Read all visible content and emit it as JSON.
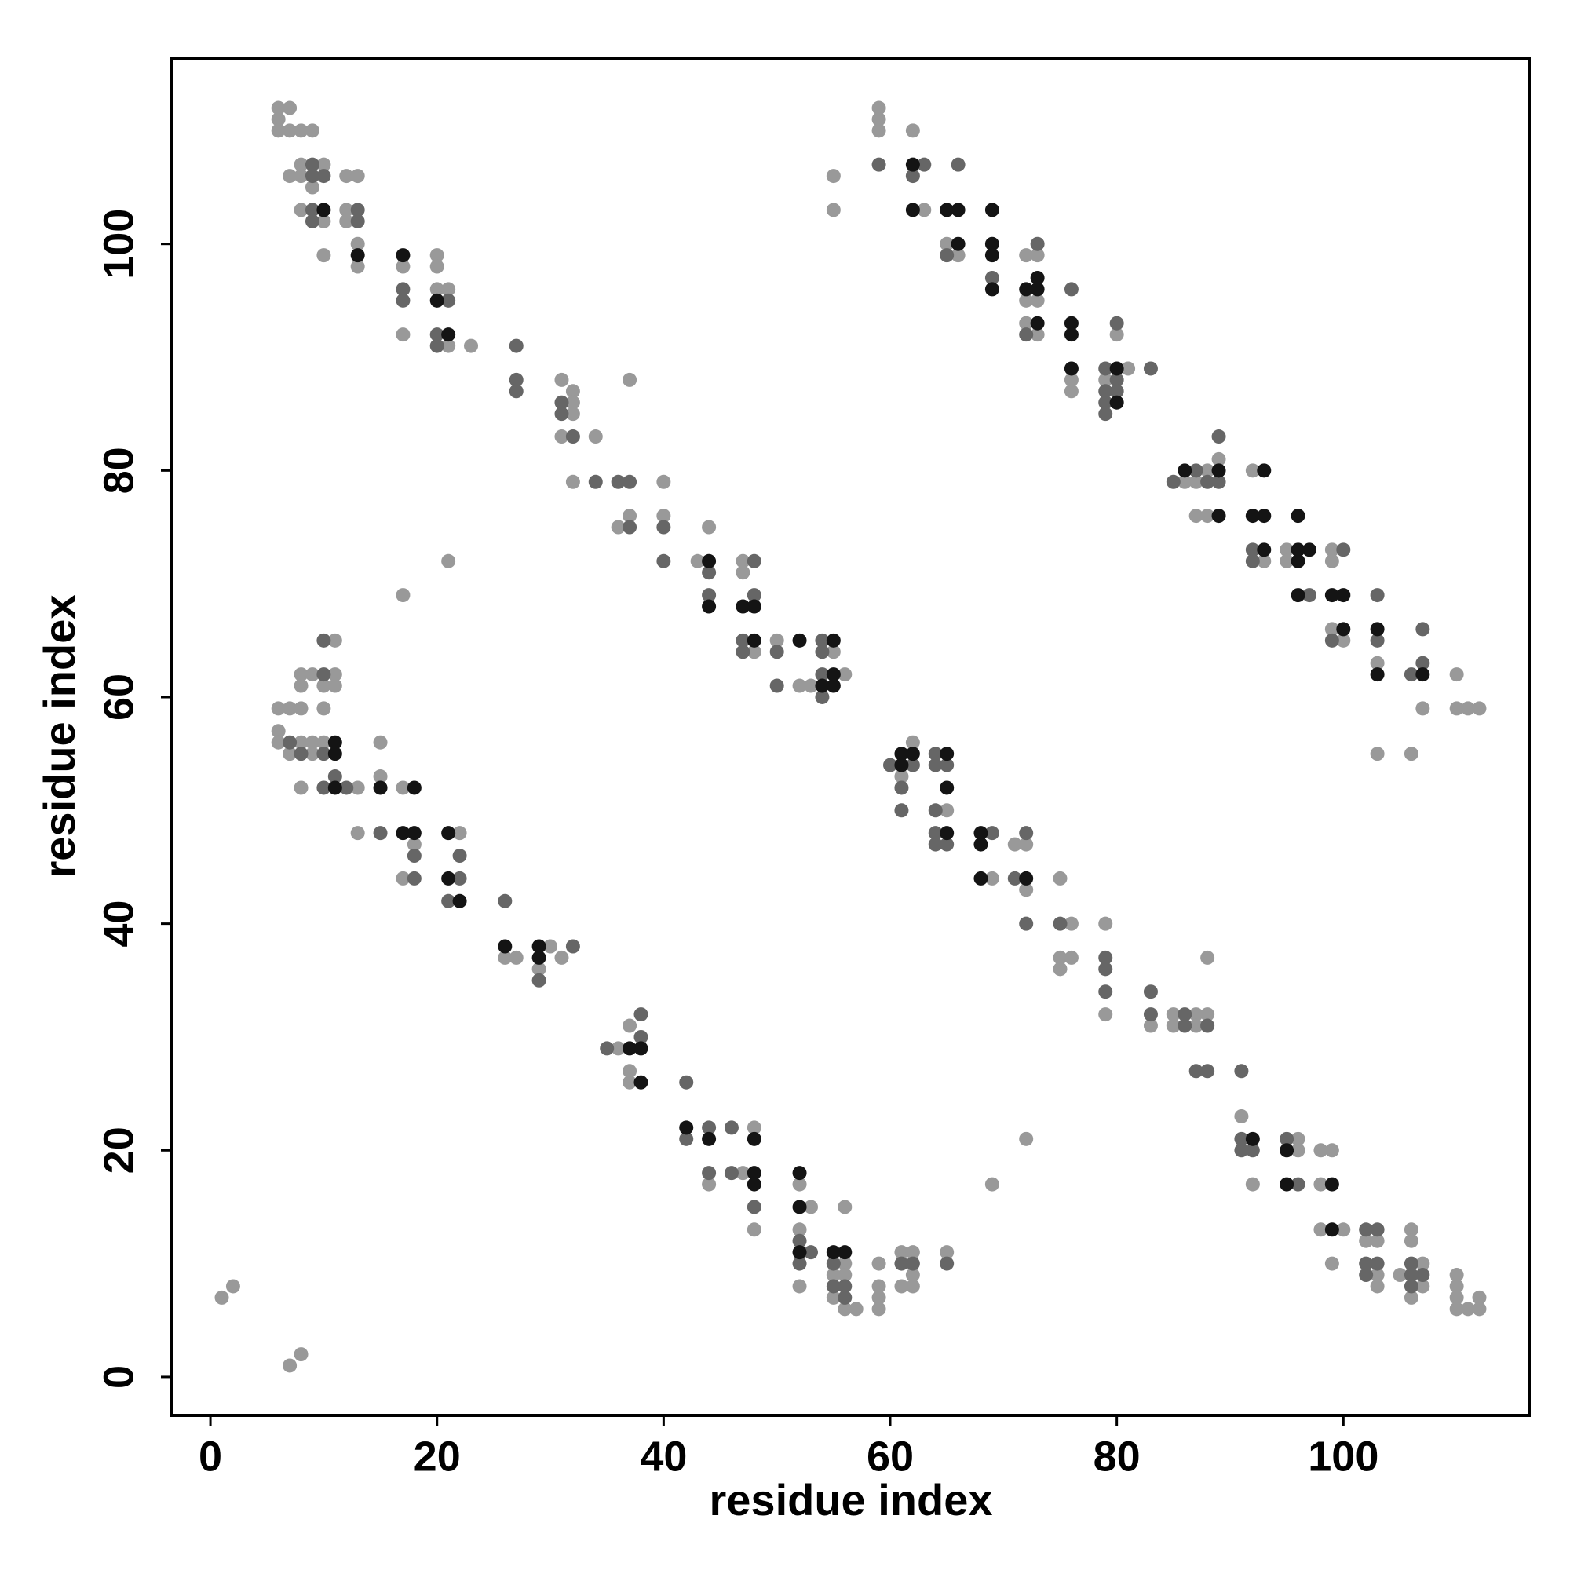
{
  "chart_data": {
    "type": "scatter",
    "xlabel": "residue index",
    "ylabel": "residue index",
    "xlim": [
      -3.4,
      116.4
    ],
    "ylim": [
      -3.4,
      116.4
    ],
    "xticks": [
      0,
      20,
      40,
      60,
      80,
      100
    ],
    "yticks": [
      0,
      20,
      40,
      60,
      80,
      100
    ],
    "grid": false,
    "series": [
      {
        "color": "#999999",
        "x": [
          6,
          7,
          6,
          6,
          7,
          8,
          9,
          7,
          8,
          10,
          8,
          9,
          8,
          10,
          10,
          12,
          13,
          12,
          12,
          13,
          13,
          17,
          17,
          20,
          20,
          20,
          21,
          21,
          23,
          31,
          32,
          32,
          32,
          31,
          34,
          37,
          32,
          36,
          37,
          40,
          40,
          43,
          44,
          47,
          47,
          48,
          50,
          52,
          53,
          55,
          56,
          17,
          21,
          55,
          55,
          59,
          59,
          59,
          62,
          63,
          65,
          66,
          72,
          73,
          72,
          73,
          72,
          73,
          76,
          76,
          80,
          79,
          81,
          86,
          87,
          88,
          89,
          87,
          88,
          92,
          93,
          95,
          95,
          99,
          99,
          99,
          100,
          103,
          107,
          103,
          106,
          110,
          110,
          111,
          112,
          6,
          7,
          8,
          6,
          6,
          8,
          7,
          9,
          9,
          10,
          10,
          8,
          8,
          9,
          11,
          10,
          11,
          11,
          8,
          13,
          15,
          15,
          13,
          17,
          18,
          17,
          22,
          26,
          27,
          30,
          29,
          31,
          36,
          37,
          37,
          37,
          48,
          44,
          47,
          48,
          52,
          53,
          52,
          52,
          56,
          55,
          56,
          55,
          56,
          57,
          56,
          59,
          59,
          59,
          59,
          61,
          62,
          61,
          62,
          62,
          65,
          1,
          2,
          7,
          8,
          62,
          61,
          65,
          69,
          71,
          72,
          72,
          75,
          76,
          75,
          76,
          75,
          79,
          79,
          83,
          85,
          87,
          85,
          87,
          88,
          88,
          72,
          69,
          91,
          92,
          96,
          96,
          98,
          99,
          98,
          98,
          100,
          99,
          102,
          103,
          103,
          103,
          105,
          106,
          106,
          107,
          107,
          106,
          110,
          110,
          110,
          110,
          111,
          112,
          112
        ],
        "values": [
          112,
          112,
          111,
          110,
          110,
          110,
          110,
          106,
          107,
          107,
          106,
          105,
          103,
          102,
          99,
          106,
          106,
          103,
          102,
          100,
          98,
          98,
          92,
          99,
          98,
          96,
          96,
          91,
          91,
          88,
          87,
          86,
          85,
          83,
          83,
          88,
          79,
          75,
          76,
          79,
          76,
          72,
          75,
          72,
          71,
          64,
          65,
          61,
          61,
          64,
          62,
          69,
          72,
          106,
          103,
          112,
          111,
          110,
          110,
          103,
          100,
          99,
          99,
          99,
          95,
          95,
          93,
          92,
          88,
          87,
          92,
          88,
          89,
          79,
          79,
          80,
          81,
          76,
          76,
          80,
          72,
          73,
          72,
          73,
          72,
          66,
          65,
          63,
          59,
          55,
          55,
          62,
          59,
          59,
          59,
          59,
          59,
          59,
          57,
          56,
          56,
          55,
          56,
          55,
          56,
          59,
          61,
          62,
          62,
          62,
          61,
          61,
          65,
          52,
          52,
          56,
          53,
          48,
          52,
          47,
          44,
          48,
          37,
          37,
          38,
          36,
          37,
          29,
          31,
          27,
          26,
          22,
          17,
          18,
          13,
          17,
          15,
          13,
          8,
          10,
          9,
          9,
          7,
          6,
          6,
          15,
          10,
          8,
          7,
          6,
          11,
          11,
          8,
          9,
          8,
          11,
          7,
          8,
          1,
          2,
          56,
          53,
          50,
          44,
          47,
          47,
          43,
          44,
          40,
          37,
          37,
          36,
          40,
          32,
          31,
          32,
          32,
          31,
          31,
          32,
          37,
          21,
          17,
          23,
          17,
          21,
          20,
          20,
          20,
          17,
          13,
          13,
          10,
          12,
          12,
          9,
          8,
          9,
          13,
          12,
          10,
          8,
          7,
          9,
          8,
          7,
          6,
          6,
          7,
          6
        ]
      },
      {
        "color": "#666666",
        "x": [
          9,
          9,
          10,
          9,
          9,
          13,
          13,
          17,
          17,
          21,
          20,
          20,
          27,
          27,
          27,
          31,
          31,
          32,
          34,
          36,
          37,
          37,
          40,
          40,
          44,
          44,
          48,
          48,
          47,
          47,
          50,
          50,
          54,
          54,
          54,
          54,
          59,
          63,
          62,
          66,
          65,
          69,
          73,
          72,
          76,
          79,
          80,
          80,
          79,
          80,
          79,
          79,
          83,
          85,
          87,
          88,
          89,
          89,
          92,
          92,
          97,
          100,
          99,
          103,
          103,
          106,
          107,
          107,
          7,
          8,
          10,
          10,
          10,
          10,
          11,
          12,
          15,
          18,
          18,
          22,
          22,
          21,
          26,
          29,
          32,
          35,
          38,
          38,
          42,
          42,
          44,
          46,
          44,
          46,
          48,
          52,
          53,
          52,
          55,
          55,
          56,
          56,
          61,
          62,
          65,
          60,
          62,
          61,
          61,
          64,
          64,
          65,
          64,
          64,
          64,
          65,
          69,
          72,
          71,
          72,
          75,
          79,
          79,
          79,
          83,
          83,
          86,
          86,
          88,
          87,
          88,
          91,
          91,
          91,
          92,
          95,
          96,
          102,
          103,
          102,
          103,
          102,
          106,
          106,
          107,
          106
        ],
        "values": [
          107,
          106,
          106,
          103,
          102,
          103,
          102,
          96,
          95,
          95,
          92,
          91,
          91,
          88,
          87,
          86,
          85,
          83,
          79,
          79,
          79,
          75,
          75,
          72,
          71,
          69,
          72,
          69,
          65,
          64,
          64,
          61,
          65,
          64,
          62,
          60,
          107,
          107,
          106,
          107,
          99,
          97,
          100,
          92,
          96,
          89,
          93,
          88,
          87,
          87,
          86,
          85,
          89,
          79,
          80,
          79,
          79,
          83,
          73,
          72,
          69,
          73,
          65,
          69,
          65,
          62,
          66,
          63,
          56,
          55,
          55,
          62,
          65,
          52,
          53,
          52,
          48,
          46,
          44,
          46,
          44,
          42,
          42,
          35,
          38,
          29,
          32,
          30,
          26,
          21,
          22,
          22,
          18,
          18,
          15,
          12,
          11,
          10,
          10,
          8,
          8,
          7,
          10,
          10,
          10,
          54,
          54,
          52,
          50,
          55,
          54,
          54,
          50,
          48,
          47,
          47,
          48,
          48,
          44,
          40,
          40,
          37,
          36,
          34,
          34,
          32,
          32,
          31,
          31,
          27,
          27,
          27,
          21,
          20,
          20,
          21,
          17,
          13,
          13,
          10,
          10,
          9,
          10,
          9,
          9,
          8
        ]
      },
      {
        "color": "#141414",
        "x": [
          10,
          13,
          17,
          20,
          21,
          44,
          44,
          47,
          48,
          48,
          52,
          55,
          55,
          54,
          55,
          62,
          62,
          65,
          66,
          66,
          69,
          69,
          69,
          69,
          72,
          73,
          73,
          73,
          76,
          76,
          76,
          80,
          80,
          86,
          89,
          89,
          93,
          92,
          93,
          93,
          96,
          96,
          97,
          96,
          96,
          99,
          100,
          100,
          103,
          103,
          107,
          11,
          11,
          11,
          15,
          18,
          17,
          18,
          21,
          21,
          22,
          26,
          29,
          29,
          37,
          38,
          38,
          42,
          44,
          48,
          48,
          48,
          52,
          52,
          52,
          55,
          56,
          61,
          61,
          62,
          65,
          65,
          65,
          68,
          68,
          68,
          72,
          92,
          95,
          95,
          99,
          99
        ],
        "values": [
          103,
          99,
          99,
          95,
          92,
          72,
          68,
          68,
          68,
          65,
          65,
          65,
          62,
          61,
          61,
          107,
          103,
          103,
          103,
          100,
          103,
          100,
          99,
          96,
          96,
          96,
          97,
          93,
          93,
          92,
          89,
          89,
          86,
          80,
          80,
          76,
          80,
          76,
          76,
          73,
          76,
          73,
          73,
          72,
          69,
          69,
          69,
          66,
          66,
          62,
          62,
          56,
          55,
          52,
          52,
          52,
          48,
          48,
          48,
          44,
          42,
          38,
          38,
          37,
          29,
          29,
          26,
          22,
          21,
          21,
          18,
          17,
          18,
          15,
          11,
          11,
          11,
          55,
          54,
          55,
          55,
          52,
          48,
          48,
          47,
          44,
          44,
          21,
          20,
          17,
          17,
          13
        ]
      }
    ]
  }
}
